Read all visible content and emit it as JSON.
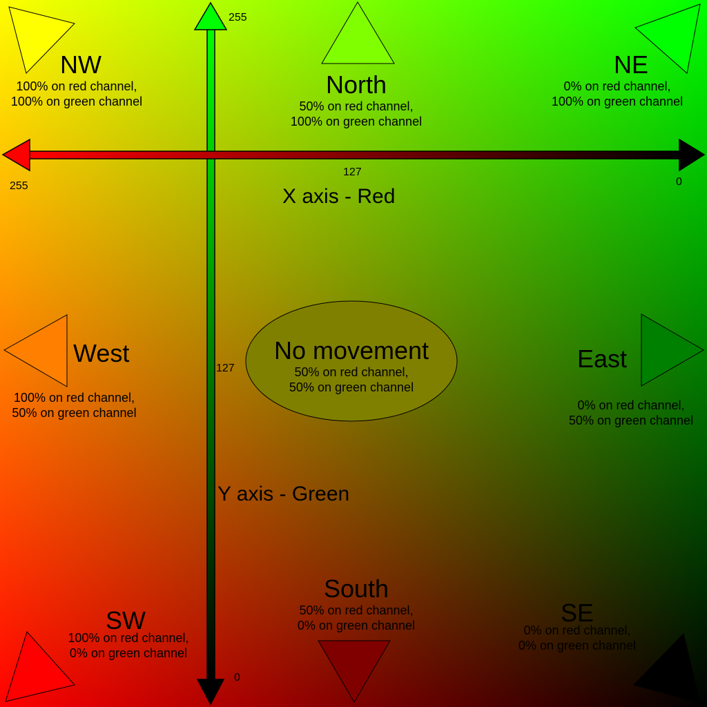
{
  "diagram": {
    "x_axis": {
      "title": "X axis - Red",
      "ticks": {
        "left": "255",
        "mid": "127",
        "right": "0"
      }
    },
    "y_axis": {
      "title": "Y axis - Green",
      "ticks": {
        "top": "255",
        "mid": "127",
        "bottom": "0"
      }
    },
    "center": {
      "title": "No movement",
      "line1": "50% on red channel,",
      "line2": "50% on green channel"
    },
    "directions": {
      "nw": {
        "title": "NW",
        "line1": "100% on red channel,",
        "line2": "100% on green channel",
        "color": "#ffff00"
      },
      "north": {
        "title": "North",
        "line1": "50% on red channel,",
        "line2": "100% on green channel",
        "color": "#80ff00"
      },
      "ne": {
        "title": "NE",
        "line1": "0% on red channel,",
        "line2": "100% on green channel",
        "color": "#00ff00"
      },
      "west": {
        "title": "West",
        "line1": "100% on red channel,",
        "line2": "50% on green channel",
        "color": "#ff8000"
      },
      "east": {
        "title": "East",
        "line1": "0% on red channel,",
        "line2": "50% on green channel",
        "color": "#008000"
      },
      "sw": {
        "title": "SW",
        "line1": "100% on red channel,",
        "line2": "0% on green channel",
        "color": "#ff0000"
      },
      "south": {
        "title": "South",
        "line1": "50% on red channel,",
        "line2": "0% on green channel",
        "color": "#800000"
      },
      "se": {
        "title": "SE",
        "line1": "0% on red channel,",
        "line2": "0% on green channel",
        "color": "#000000"
      }
    },
    "colors": {
      "red": "#ff0000",
      "green": "#00ff00",
      "yellow": "#ffff00",
      "black": "#000000",
      "center_fill": "#808000"
    }
  }
}
